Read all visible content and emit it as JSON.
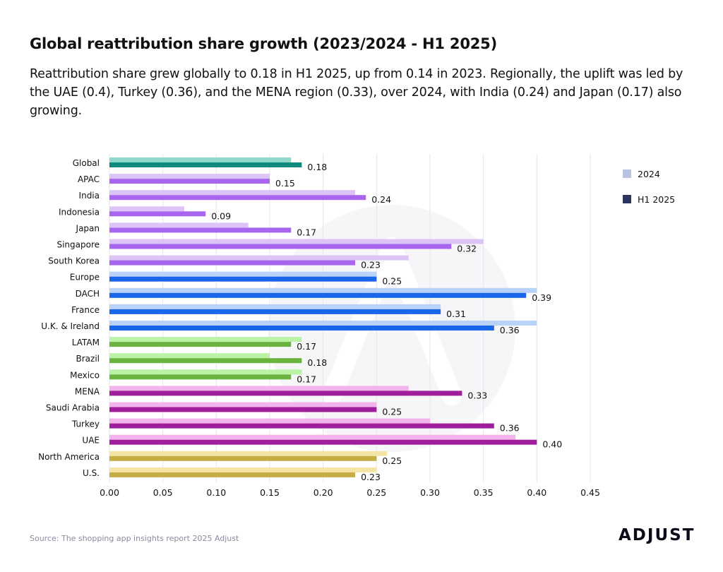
{
  "title": "Global reattribution share growth (2023/2024 - H1 2025)",
  "subtitle": "Reattribution share grew globally to 0.18 in H1 2025, up from 0.14 in 2023. Regionally, the uplift was led by the UAE (0.4), Turkey (0.36), and the MENA region (0.33), over 2024, with India (0.24) and Japan (0.17) also growing.",
  "source": "Source: The shopping app insights report 2025 Adjust",
  "logo": "ADJUST",
  "chart_data": {
    "type": "bar",
    "orientation": "horizontal",
    "categories": [
      "Global",
      "APAC",
      "India",
      "Indonesia",
      "Japan",
      "Singapore",
      "South Korea",
      "Europe",
      "DACH",
      "France",
      "U.K. & Ireland",
      "LATAM",
      "Brazil",
      "Mexico",
      "MENA",
      "Saudi Arabia",
      "Turkey",
      "UAE",
      "North America",
      "U.S."
    ],
    "series": [
      {
        "name": "2024",
        "values": [
          0.17,
          0.15,
          0.23,
          0.07,
          0.13,
          0.35,
          0.28,
          0.25,
          0.4,
          0.31,
          0.4,
          0.18,
          0.15,
          0.18,
          0.28,
          0.25,
          0.3,
          0.38,
          0.26,
          0.25
        ]
      },
      {
        "name": "H1 2025",
        "values": [
          0.18,
          0.15,
          0.24,
          0.09,
          0.17,
          0.32,
          0.23,
          0.25,
          0.39,
          0.31,
          0.36,
          0.17,
          0.18,
          0.17,
          0.33,
          0.25,
          0.36,
          0.4,
          0.25,
          0.23
        ]
      }
    ],
    "data_labels": [
      "0.18",
      "0.15",
      "0.24",
      "0.09",
      "0.17",
      "0.32",
      "0.23",
      "0.25",
      "0.39",
      "0.31",
      "0.36",
      "0.17",
      "0.18",
      "0.17",
      "0.33",
      "0.25",
      "0.36",
      "0.40",
      "0.25",
      "0.23"
    ],
    "groups": [
      "global",
      "apac",
      "apac",
      "apac",
      "apac",
      "apac",
      "apac",
      "europe",
      "europe",
      "europe",
      "europe",
      "latam",
      "latam",
      "latam",
      "mena",
      "mena",
      "mena",
      "mena",
      "na",
      "na"
    ],
    "group_colors": {
      "global": {
        "light": "#8fd6cb",
        "dark": "#0f8a7e"
      },
      "apac": {
        "light": "#dcc4f7",
        "dark": "#a866ee"
      },
      "europe": {
        "light": "#b9d3f8",
        "dark": "#1a66e8"
      },
      "latam": {
        "light": "#baf2a6",
        "dark": "#6ab33e"
      },
      "mena": {
        "light": "#f3b4ec",
        "dark": "#a01d9c"
      },
      "na": {
        "light": "#f4e4a6",
        "dark": "#c6ac45"
      }
    },
    "legend_colors": {
      "2024": "#b8c4e0",
      "H1 2025": "#2c3560"
    },
    "xlim": [
      0,
      0.45
    ],
    "xticks": [
      "0.00",
      "0.05",
      "0.10",
      "0.15",
      "0.20",
      "0.25",
      "0.30",
      "0.35",
      "0.40",
      "0.45"
    ],
    "grid": true,
    "legend_position": "top-right",
    "xlabel": "",
    "ylabel": ""
  }
}
